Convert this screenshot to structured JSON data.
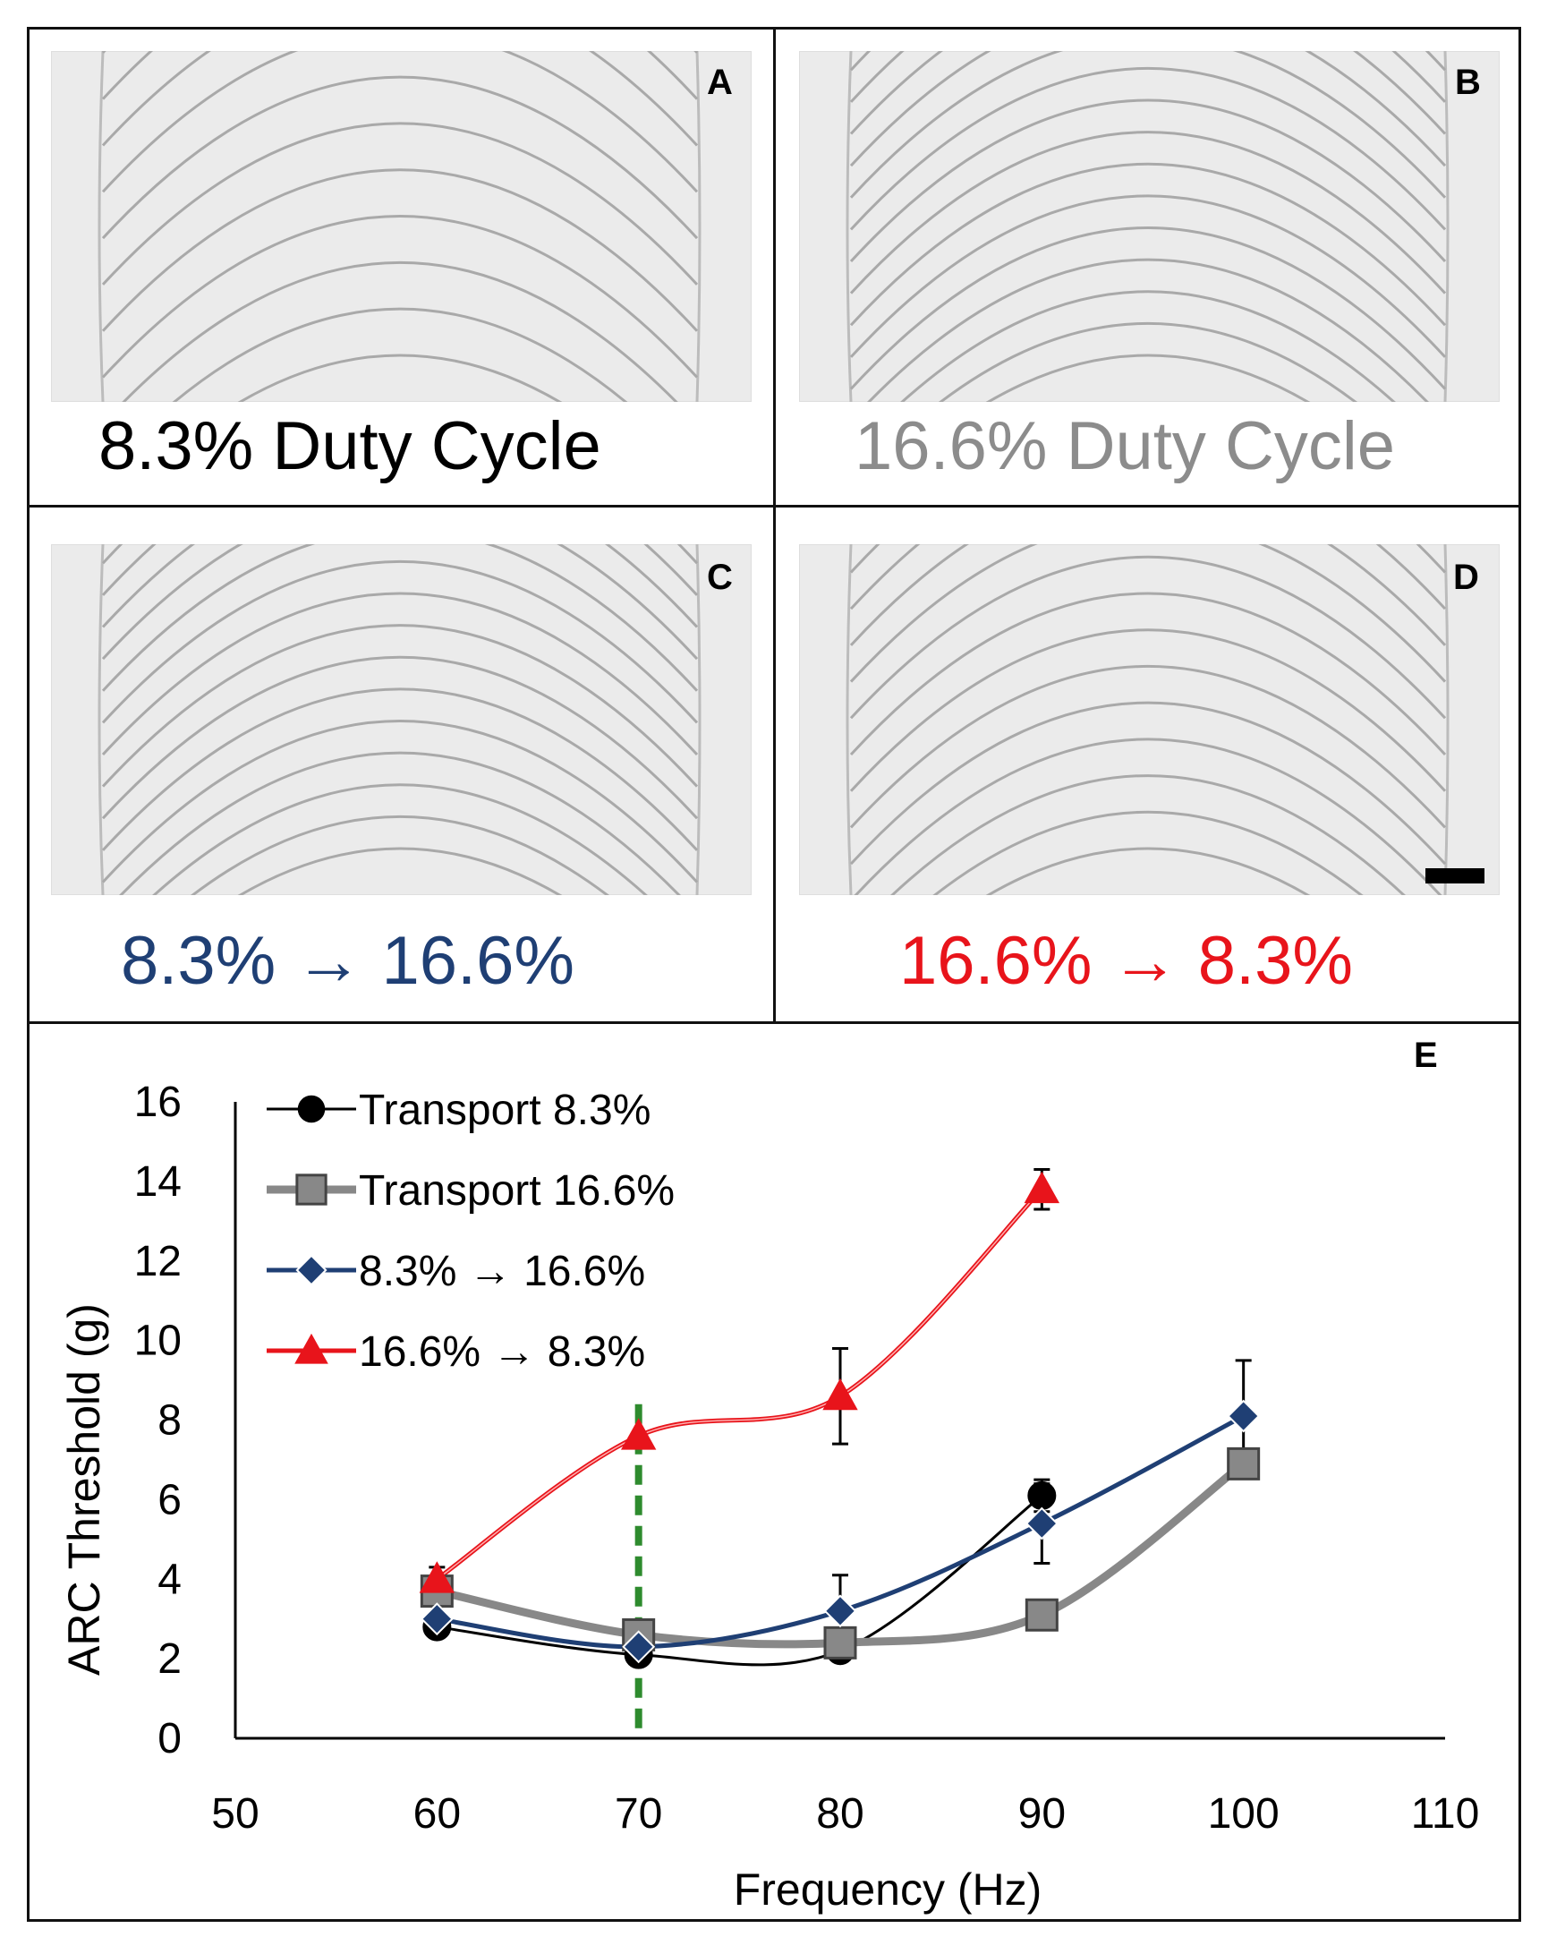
{
  "panels": [
    {
      "id": "A",
      "caption": "8.3% Duty Cycle",
      "caption_color": "#000000",
      "arcs": 12
    },
    {
      "id": "B",
      "caption": "16.6% Duty Cycle",
      "caption_color": "#8c8c8c",
      "arcs": 17
    },
    {
      "id": "C",
      "caption": "8.3% → 16.6%",
      "caption_color": "#1f3f74",
      "arcs": 17
    },
    {
      "id": "D",
      "caption": "16.6% → 8.3%",
      "caption_color": "#e8141b",
      "arcs": 15
    }
  ],
  "chart_data": {
    "type": "line",
    "panel_label": "E",
    "xlabel": "Frequency (Hz)",
    "ylabel": "ARC Threshold (g)",
    "xlim": [
      50,
      110
    ],
    "ylim": [
      0,
      16
    ],
    "xticks": [
      "50",
      "60",
      "70",
      "80",
      "90",
      "100",
      "110"
    ],
    "yticks": [
      "0",
      "2",
      "4",
      "6",
      "8",
      "10",
      "12",
      "14",
      "16"
    ],
    "xtick_values": [
      50,
      60,
      70,
      80,
      90,
      100,
      110
    ],
    "ytick_values": [
      0,
      2,
      4,
      6,
      8,
      10,
      12,
      14,
      16
    ],
    "legend_position": "top-left",
    "reference_line": {
      "x": 70,
      "style": "dashed",
      "color": "#2e8b2e"
    },
    "series": [
      {
        "name": "Transport 8.3%",
        "color": "#000000",
        "marker": "circle",
        "x": [
          60,
          70,
          80,
          90
        ],
        "y": [
          2.8,
          2.1,
          2.2,
          6.1
        ],
        "err": [
          0,
          0,
          0,
          0.4
        ]
      },
      {
        "name": "Transport 16.6%",
        "color": "#888888",
        "marker": "square",
        "x": [
          60,
          70,
          80,
          90,
          100
        ],
        "y": [
          3.7,
          2.6,
          2.4,
          3.1,
          6.9
        ],
        "err": [
          0,
          0,
          0,
          0,
          0
        ]
      },
      {
        "name": "8.3% → 16.6%",
        "color": "#1f3f74",
        "marker": "diamond",
        "x": [
          60,
          70,
          80,
          90,
          100
        ],
        "y": [
          3.0,
          2.3,
          3.2,
          5.4,
          8.1
        ],
        "err": [
          0,
          0,
          0.9,
          1.0,
          1.4
        ]
      },
      {
        "name": "16.6% → 8.3%",
        "color": "#e8141b",
        "marker": "triangle",
        "x": [
          60,
          70,
          80,
          90
        ],
        "y": [
          4.0,
          7.6,
          8.6,
          13.8
        ],
        "err": [
          0.3,
          0,
          1.2,
          0.5
        ]
      }
    ]
  }
}
